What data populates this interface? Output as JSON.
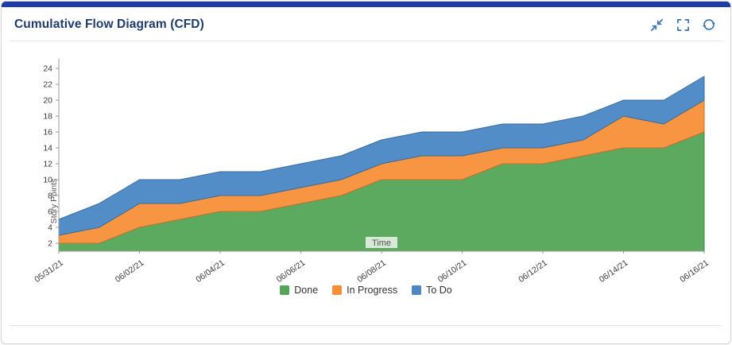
{
  "header": {
    "title": "Cumulative Flow Diagram (CFD)",
    "icons": [
      {
        "name": "collapse-icon"
      },
      {
        "name": "fullscreen-icon"
      },
      {
        "name": "refresh-icon"
      }
    ]
  },
  "colors": {
    "top_bar": "#1C3BA4",
    "title": "#1F3C6D",
    "icon": "#3B73B2",
    "axis": "#9a9a9a",
    "tick_text": "#3a3a3a",
    "axis_title_text": "#555555",
    "divider": "#e4e4e4"
  },
  "chart_data": {
    "type": "area",
    "stacked": true,
    "title": "Cumulative Flow Diagram (CFD)",
    "xlabel": "Time",
    "ylabel": "Story Points",
    "x": [
      "05/31/21",
      "06/01/21",
      "06/02/21",
      "06/03/21",
      "06/04/21",
      "06/05/21",
      "06/06/21",
      "06/07/21",
      "06/08/21",
      "06/09/21",
      "06/10/21",
      "06/11/21",
      "06/12/21",
      "06/13/21",
      "06/14/21",
      "06/15/21",
      "06/16/21"
    ],
    "x_tick_interval": 2,
    "series": [
      {
        "name": "Done",
        "color": "#53A556",
        "values": [
          2,
          2,
          4,
          5,
          6,
          6,
          7,
          8,
          10,
          10,
          10,
          12,
          12,
          13,
          14,
          14,
          16
        ]
      },
      {
        "name": "In Progress",
        "color": "#F78F39",
        "values": [
          1,
          2,
          3,
          2,
          2,
          2,
          2,
          2,
          2,
          3,
          3,
          2,
          2,
          2,
          4,
          3,
          4
        ]
      },
      {
        "name": "To Do",
        "color": "#4A87C4",
        "values": [
          2,
          3,
          3,
          3,
          3,
          3,
          3,
          3,
          3,
          3,
          3,
          3,
          3,
          3,
          2,
          3,
          3
        ]
      }
    ],
    "ylim": [
      1,
      25
    ],
    "yticks": [
      2,
      4,
      6,
      8,
      10,
      12,
      14,
      16,
      18,
      20,
      22,
      24
    ],
    "grid": false,
    "legend_position": "bottom",
    "legend": [
      "Done",
      "In Progress",
      "To Do"
    ]
  }
}
